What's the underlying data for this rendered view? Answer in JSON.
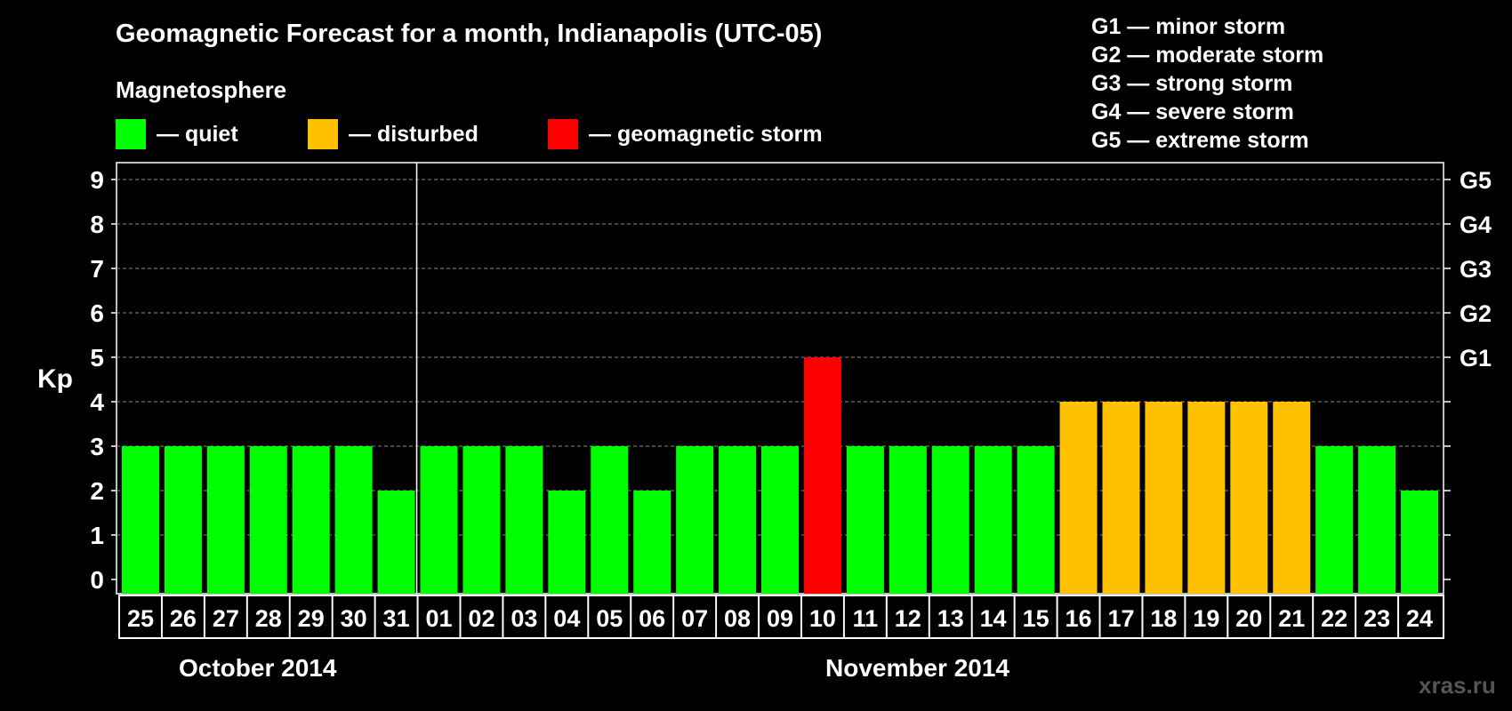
{
  "title": "Geomagnetic Forecast for a month, Indianapolis (UTC-05)",
  "magnetosphere": {
    "heading": "Magnetosphere",
    "items": [
      {
        "label": "— quiet",
        "color": "#00ff00"
      },
      {
        "label": "— disturbed",
        "color": "#ffc000"
      },
      {
        "label": "— geomagnetic storm",
        "color": "#ff0000"
      }
    ]
  },
  "storm_scale": [
    "G1 — minor storm",
    "G2 — moderate storm",
    "G3 — strong storm",
    "G4 — severe storm",
    "G5 — extreme storm"
  ],
  "ylabel": "Kp",
  "months": [
    "October 2014",
    "November 2014"
  ],
  "watermark": "xras.ru",
  "chart_data": {
    "type": "bar",
    "ylim": [
      0,
      9
    ],
    "y_ticks": [
      "0",
      "1",
      "2",
      "3",
      "4",
      "5",
      "6",
      "7",
      "8",
      "9"
    ],
    "right_ticks": [
      {
        "kp": 5,
        "label": "G1"
      },
      {
        "kp": 6,
        "label": "G2"
      },
      {
        "kp": 7,
        "label": "G3"
      },
      {
        "kp": 8,
        "label": "G4"
      },
      {
        "kp": 9,
        "label": "G5"
      }
    ],
    "categories": [
      "25",
      "26",
      "27",
      "28",
      "29",
      "30",
      "31",
      "01",
      "02",
      "03",
      "04",
      "05",
      "06",
      "07",
      "08",
      "09",
      "10",
      "11",
      "12",
      "13",
      "14",
      "15",
      "16",
      "17",
      "18",
      "19",
      "20",
      "21",
      "22",
      "23",
      "24"
    ],
    "values": [
      3,
      3,
      3,
      3,
      3,
      3,
      2,
      3,
      3,
      3,
      2,
      3,
      2,
      3,
      3,
      3,
      5,
      3,
      3,
      3,
      3,
      3,
      4,
      4,
      4,
      4,
      4,
      4,
      3,
      3,
      2
    ],
    "status": [
      "quiet",
      "quiet",
      "quiet",
      "quiet",
      "quiet",
      "quiet",
      "quiet",
      "quiet",
      "quiet",
      "quiet",
      "quiet",
      "quiet",
      "quiet",
      "quiet",
      "quiet",
      "quiet",
      "storm",
      "quiet",
      "quiet",
      "quiet",
      "quiet",
      "quiet",
      "disturbed",
      "disturbed",
      "disturbed",
      "disturbed",
      "disturbed",
      "disturbed",
      "quiet",
      "quiet",
      "quiet"
    ],
    "status_colors": {
      "quiet": "#00ff00",
      "disturbed": "#ffc000",
      "storm": "#ff0000"
    },
    "month_divider_after_index": 6,
    "grid": true
  }
}
